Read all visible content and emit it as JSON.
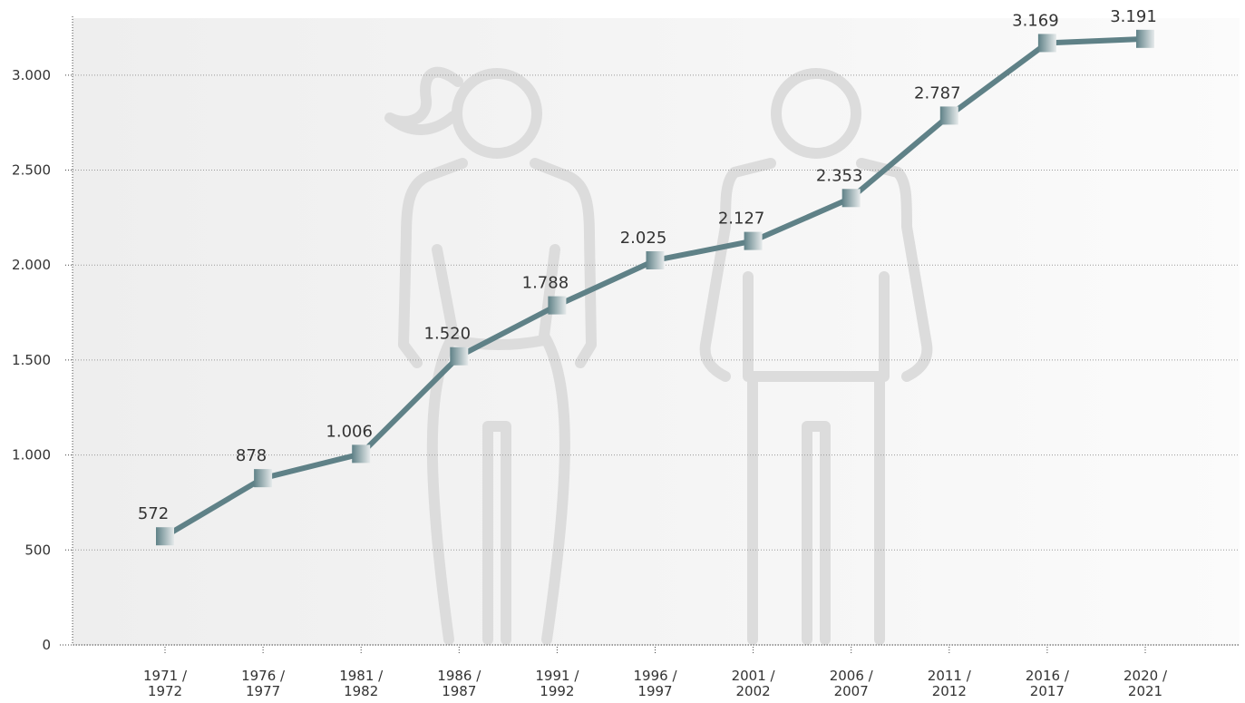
{
  "chart_data": {
    "type": "line",
    "categories": [
      [
        "1971 /",
        "1972"
      ],
      [
        "1976 /",
        "1977"
      ],
      [
        "1981 /",
        "1982"
      ],
      [
        "1986 /",
        "1987"
      ],
      [
        "1991 /",
        "1992"
      ],
      [
        "1996 /",
        "1997"
      ],
      [
        "2001 /",
        "2002"
      ],
      [
        "2006 /",
        "2007"
      ],
      [
        "2011 /",
        "2012"
      ],
      [
        "2016 /",
        "2017"
      ],
      [
        "2020 /",
        "2021"
      ]
    ],
    "series": [
      {
        "color": "#5f8187",
        "values": [
          572,
          878,
          1006,
          1520,
          1788,
          2025,
          2127,
          2353,
          2787,
          3169,
          3191
        ],
        "value_labels": [
          "572",
          "878",
          "1.006",
          "1.520",
          "1.788",
          "2.025",
          "2.127",
          "2.353",
          "2.787",
          "3.169",
          "3.191"
        ]
      }
    ],
    "ylim": [
      0,
      3300
    ],
    "yticks": [
      0,
      500,
      {
        "value": 1000,
        "label": "1.000"
      },
      {
        "value": 1500,
        "label": "1.500"
      },
      {
        "value": 2000,
        "label": "2.000"
      },
      {
        "value": 2500,
        "label": "2.500"
      },
      {
        "value": 3000,
        "label": "3.000"
      }
    ],
    "grid": true
  }
}
